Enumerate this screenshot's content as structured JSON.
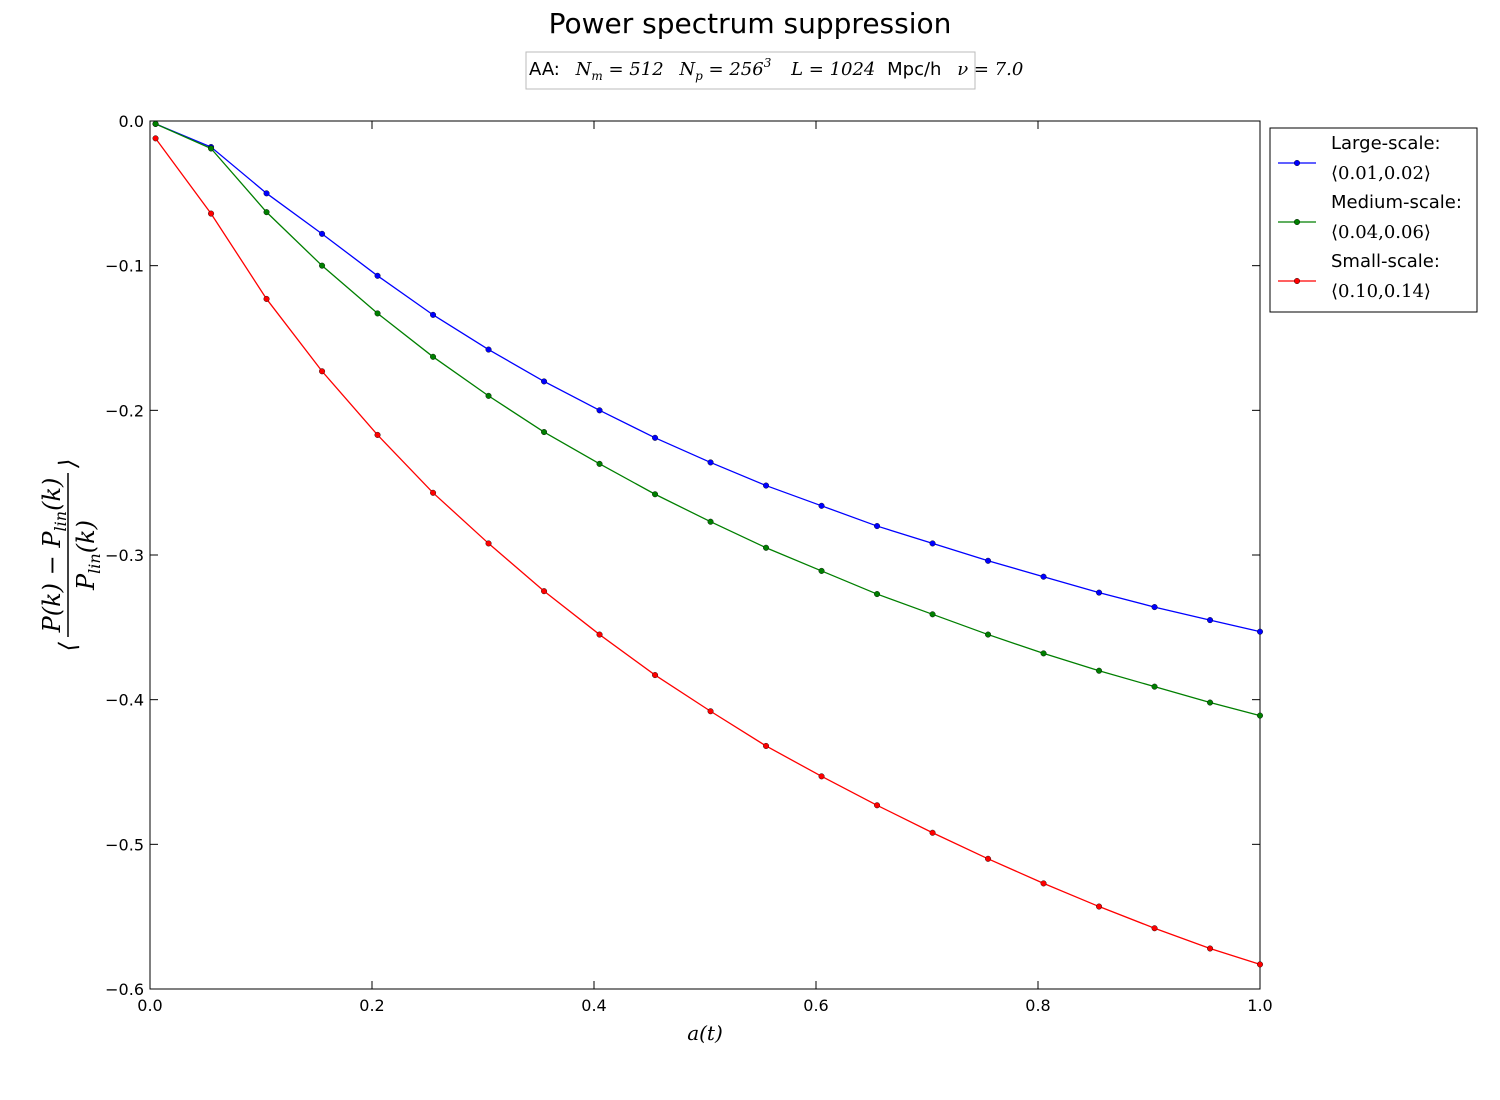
{
  "chart_data": {
    "type": "line",
    "title": "Power spectrum suppression",
    "subtitle": "AA:  N_m = 512   N_p = 256³    L = 1024 Mpc/h   ν = 7.0",
    "subtitle_parts": {
      "prefix": "AA:",
      "nm": "N",
      "nm_sub": "m",
      "nm_val": " = 512",
      "np": "N",
      "np_sub": "p",
      "np_val": " = 256",
      "np_sup": "3",
      "l": "L",
      "l_val": " = 1024",
      "l_unit": "Mpc/h",
      "nu": "ν",
      "nu_val": " = 7.0"
    },
    "xlabel": "a(t)",
    "ylabel": "⟨(P(k) − P_lin(k)) / P_lin(k)⟩",
    "ylabel_parts": {
      "numerator": "P(k) − P",
      "num_sub": "lin",
      "num_end": "(k)",
      "denominator": "P",
      "den_sub": "lin",
      "den_end": "(k)",
      "left_bracket": "⟨",
      "right_bracket": "⟩"
    },
    "xlim": [
      0.0,
      1.0
    ],
    "ylim": [
      -0.6,
      0.0
    ],
    "xticks": [
      "0.0",
      "0.2",
      "0.4",
      "0.6",
      "0.8",
      "1.0"
    ],
    "yticks": [
      "0.0",
      "−0.1",
      "−0.2",
      "−0.3",
      "−0.4",
      "−0.5",
      "−0.6"
    ],
    "grid": false,
    "legend_position": "outside-right-top",
    "x": [
      0.005,
      0.055,
      0.105,
      0.155,
      0.205,
      0.255,
      0.305,
      0.355,
      0.405,
      0.455,
      0.505,
      0.555,
      0.605,
      0.655,
      0.705,
      0.755,
      0.805,
      0.855,
      0.905,
      0.955,
      1.0
    ],
    "series": [
      {
        "name": "Large-scale:",
        "range_label": "⟨0.01,0.02⟩",
        "color": "#0000ff",
        "values": [
          -0.002,
          -0.018,
          -0.05,
          -0.078,
          -0.107,
          -0.134,
          -0.158,
          -0.18,
          -0.2,
          -0.219,
          -0.236,
          -0.252,
          -0.266,
          -0.28,
          -0.292,
          -0.304,
          -0.315,
          -0.326,
          -0.336,
          -0.345,
          -0.353
        ]
      },
      {
        "name": "Medium-scale:",
        "range_label": "⟨0.04,0.06⟩",
        "color": "#007f00",
        "values": [
          -0.002,
          -0.019,
          -0.063,
          -0.1,
          -0.133,
          -0.163,
          -0.19,
          -0.215,
          -0.237,
          -0.258,
          -0.277,
          -0.295,
          -0.311,
          -0.327,
          -0.341,
          -0.355,
          -0.368,
          -0.38,
          -0.391,
          -0.402,
          -0.411
        ]
      },
      {
        "name": "Small-scale:",
        "range_label": "⟨0.10,0.14⟩",
        "color": "#ff0000",
        "values": [
          -0.012,
          -0.064,
          -0.123,
          -0.173,
          -0.217,
          -0.257,
          -0.292,
          -0.325,
          -0.355,
          -0.383,
          -0.408,
          -0.432,
          -0.453,
          -0.473,
          -0.492,
          -0.51,
          -0.527,
          -0.543,
          -0.558,
          -0.572,
          -0.583
        ]
      }
    ]
  }
}
